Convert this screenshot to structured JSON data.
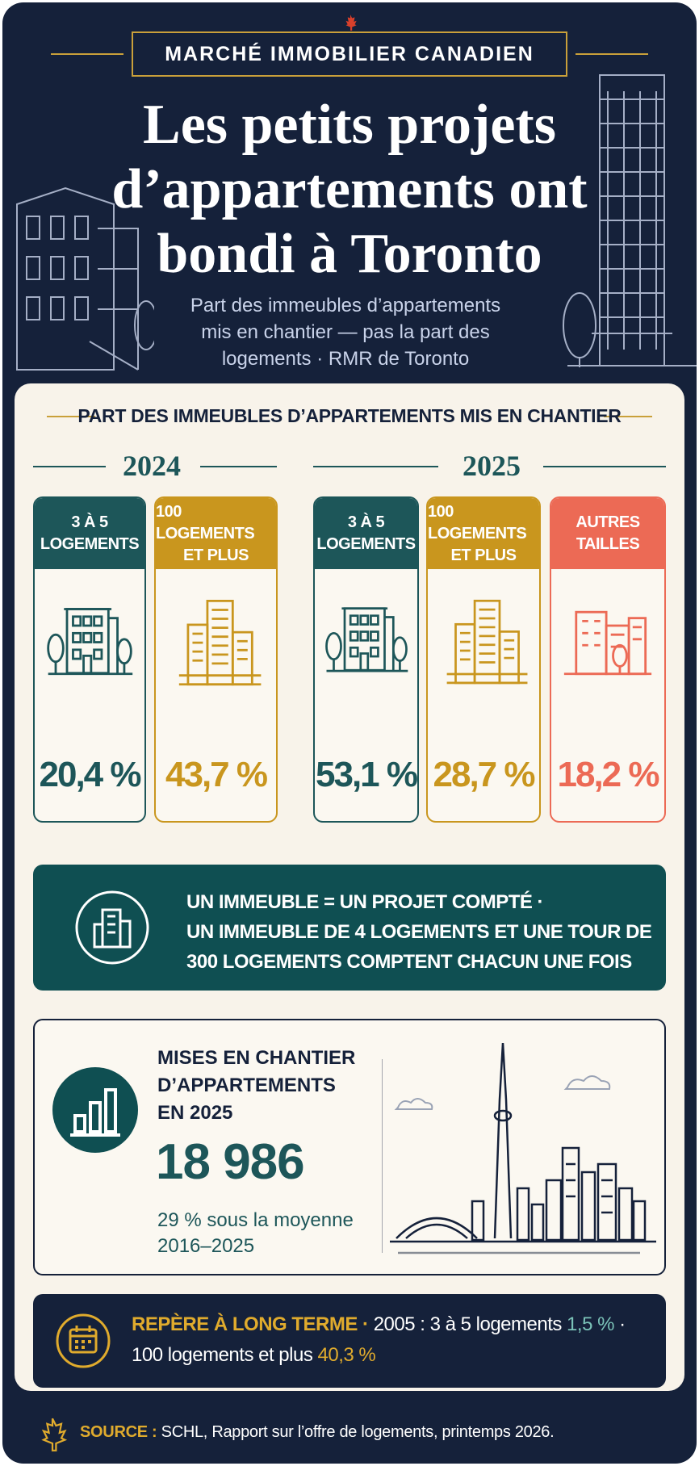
{
  "header": {
    "kicker": "MARCHÉ IMMOBILIER CANADIEN",
    "title_lines": [
      "Les petits projets",
      "d’appartements ont",
      "bondi à Toronto"
    ],
    "subtitle_lines": [
      "Part des immeubles d’appartements",
      "mis en chantier — pas la part des",
      "logements · RMR de Toronto"
    ]
  },
  "shares": {
    "heading": "PART DES IMMEUBLES D’APPARTEMENTS MIS EN CHANTIER",
    "years": [
      {
        "year": "2024",
        "cards": [
          {
            "label_lines": [
              "3 À 5",
              "LOGEMENTS"
            ],
            "value": "20,4 %"
          },
          {
            "label_lines": [
              "100 LOGEMENTS",
              "ET PLUS"
            ],
            "value": "43,7 %"
          }
        ]
      },
      {
        "year": "2025",
        "cards": [
          {
            "label_lines": [
              "3 À 5",
              "LOGEMENTS"
            ],
            "value": "53,1 %"
          },
          {
            "label_lines": [
              "100 LOGEMENTS",
              "ET PLUS"
            ],
            "value": "28,7 %"
          },
          {
            "label_lines": [
              "AUTRES",
              "TAILLES"
            ],
            "value": "18,2 %"
          }
        ]
      }
    ]
  },
  "note_lines": [
    "UN IMMEUBLE = UN PROJET COMPTÉ ·",
    "UN IMMEUBLE DE 4 LOGEMENTS ET UNE TOUR DE",
    "300 LOGEMENTS COMPTENT CHACUN UNE FOIS"
  ],
  "starts": {
    "label_lines": [
      "MISES EN CHANTIER",
      "D’APPARTEMENTS",
      "EN 2025"
    ],
    "value": "18 986",
    "comparison_lines": [
      "29 % sous la moyenne",
      "2016–2025"
    ]
  },
  "benchmark": {
    "label": "REPÈRE À LONG TERME ·",
    "item1": "2005 : 3 à 5 logements",
    "value1": "1,5 %",
    "separator": "·",
    "item2": "100 logements et plus",
    "value2": "40,3 %"
  },
  "source": {
    "label": "SOURCE :",
    "text": "SCHL, Rapport sur l’offre de logements, printemps 2026."
  }
}
